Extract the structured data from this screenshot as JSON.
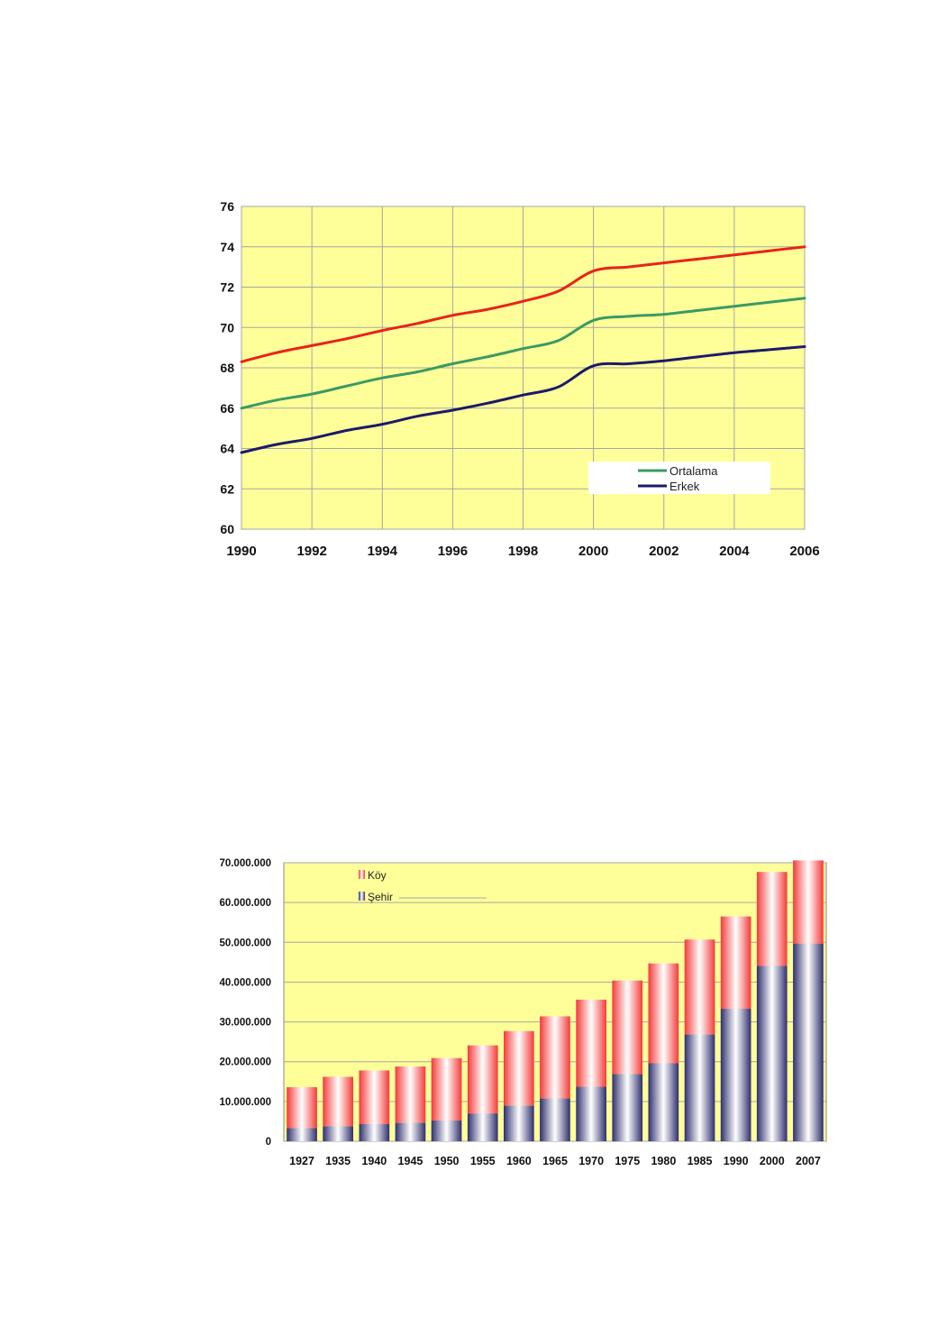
{
  "colors": {
    "plot_bg": "#ffff99",
    "grid": "#a6a6a6",
    "female_line": "#e8231a",
    "average_line": "#3a9a63",
    "male_line": "#1c1a6b",
    "koy_bar": "#f43a3a",
    "sehir_bar": "#2e2e6e"
  },
  "chart_data": [
    {
      "type": "line",
      "title": "",
      "xlabel": "",
      "ylabel": "",
      "xlim": [
        1990,
        2006
      ],
      "ylim": [
        60,
        76
      ],
      "x_ticks": [
        "1990",
        "1992",
        "1994",
        "1996",
        "1998",
        "2000",
        "2002",
        "2004",
        "2006"
      ],
      "y_ticks": [
        "76",
        "74",
        "72",
        "70",
        "68",
        "66",
        "64",
        "62",
        "60"
      ],
      "grid": true,
      "legend_position": "bottom-right",
      "x": [
        1990,
        1991,
        1992,
        1993,
        1994,
        1995,
        1996,
        1997,
        1998,
        1999,
        2000,
        2001,
        2002,
        2003,
        2004,
        2005,
        2006
      ],
      "series": [
        {
          "name": "",
          "color_key": "female_line",
          "values": [
            68.3,
            68.75,
            69.1,
            69.45,
            69.85,
            70.2,
            70.6,
            70.9,
            71.3,
            71.8,
            72.8,
            73.0,
            73.2,
            73.4,
            73.6,
            73.8,
            74.0
          ]
        },
        {
          "name": "Ortalama",
          "color_key": "average_line",
          "values": [
            66.0,
            66.4,
            66.7,
            67.1,
            67.5,
            67.8,
            68.2,
            68.55,
            68.95,
            69.35,
            70.35,
            70.55,
            70.65,
            70.85,
            71.05,
            71.25,
            71.45
          ]
        },
        {
          "name": "Erkek",
          "color_key": "male_line",
          "values": [
            63.8,
            64.2,
            64.5,
            64.9,
            65.2,
            65.6,
            65.9,
            66.25,
            66.65,
            67.05,
            68.1,
            68.2,
            68.35,
            68.55,
            68.75,
            68.9,
            69.05
          ]
        }
      ]
    },
    {
      "type": "bar",
      "stacked": true,
      "title": "",
      "xlabel": "",
      "ylabel": "",
      "ylim": [
        0,
        70000000
      ],
      "y_ticks": [
        "70.000.000",
        "60.000.000",
        "50.000.000",
        "40.000.000",
        "30.000.000",
        "20.000.000",
        "10.000.000",
        "0"
      ],
      "grid": true,
      "legend_position": "top-left",
      "categories": [
        "1927",
        "1935",
        "1940",
        "1945",
        "1950",
        "1955",
        "1960",
        "1965",
        "1970",
        "1975",
        "1980",
        "1985",
        "1990",
        "2000",
        "2007"
      ],
      "series": [
        {
          "name": "Şehir",
          "color_key": "sehir_bar",
          "values": [
            3300000,
            3800000,
            4300000,
            4700000,
            5200000,
            7000000,
            9000000,
            10800000,
            13700000,
            16900000,
            19600000,
            26900000,
            33300000,
            44100000,
            49700000
          ]
        },
        {
          "name": "Köy",
          "color_key": "koy_bar",
          "values": [
            10300000,
            12400000,
            13500000,
            14100000,
            15700000,
            17100000,
            18700000,
            20600000,
            21900000,
            23500000,
            25100000,
            23800000,
            23200000,
            23600000,
            20900000
          ]
        }
      ]
    }
  ]
}
